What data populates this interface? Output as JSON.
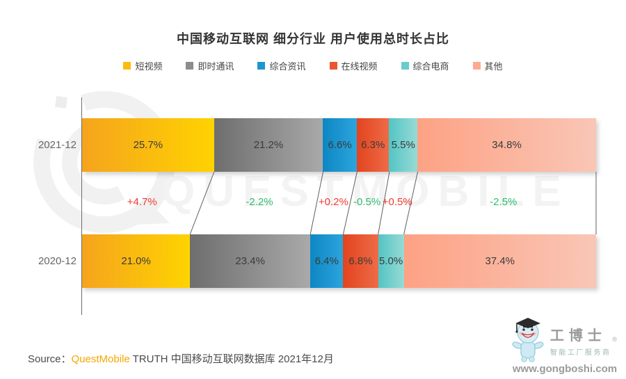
{
  "title": "中国移动互联网 细分行业 用户使用总时长占比",
  "watermark": {
    "text": "QUESTMOBILE"
  },
  "legend": {
    "items": [
      {
        "label": "短视频",
        "color": "#fbbc10"
      },
      {
        "label": "即时通讯",
        "color": "#8c8c8c"
      },
      {
        "label": "综合资讯",
        "color": "#1d95d0"
      },
      {
        "label": "在线视频",
        "color": "#e85732"
      },
      {
        "label": "综合电商",
        "color": "#68ccca"
      },
      {
        "label": "其他",
        "color": "#fcab92"
      }
    ]
  },
  "chart_data": {
    "type": "bar",
    "variant": "horizontal-stacked-100-percent",
    "title": "中国移动互联网 细分行业 用户使用总时长占比",
    "unit": "%",
    "categories": [
      "短视频",
      "即时通讯",
      "综合资讯",
      "在线视频",
      "综合电商",
      "其他"
    ],
    "rows": [
      {
        "label": "2021-12",
        "values": [
          25.7,
          21.2,
          6.6,
          6.3,
          5.5,
          34.8
        ]
      },
      {
        "label": "2020-12",
        "values": [
          21.0,
          23.4,
          6.4,
          6.8,
          5.0,
          37.4
        ]
      }
    ],
    "changes": [
      "+4.7%",
      "-2.2%",
      "+0.2%",
      "-0.5%",
      "+0.5%",
      "-2.5%"
    ],
    "change_positive_color": "#f23a30",
    "change_negative_color": "#2dbd6e",
    "segment_gradients": [
      [
        "#f5a41d",
        "#ffd301"
      ],
      [
        "#6e6e6e",
        "#a9a9a9"
      ],
      [
        "#0d87c3",
        "#2ca4dd"
      ],
      [
        "#e2441e",
        "#ee6b47"
      ],
      [
        "#52c5c5",
        "#97dad5"
      ],
      [
        "#fda284",
        "#f9c6b6"
      ]
    ],
    "xlim": [
      0,
      100
    ],
    "legend_position": "top",
    "grid": false
  },
  "source": {
    "prefix": "Source：",
    "brand": "QuestMobile",
    "rest": " TRUTH 中国移动互联网数据库 2021年12月"
  },
  "logo": {
    "brand": "工博士",
    "reg": "®",
    "tagline": "智能工厂服务商",
    "website": "www.gongboshi.com"
  }
}
